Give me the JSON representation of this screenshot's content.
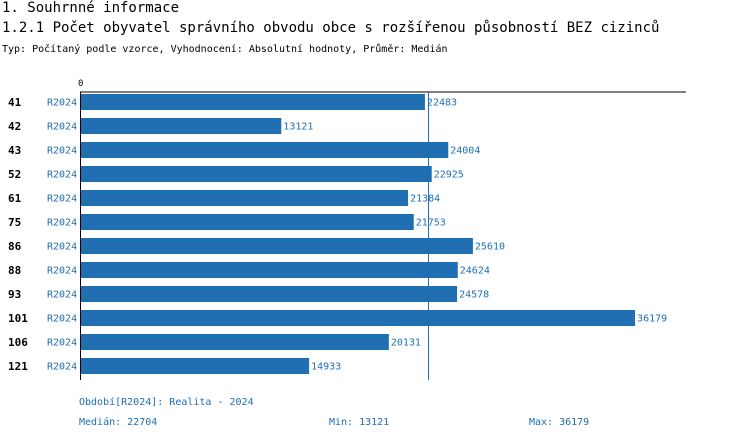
{
  "section_title": "1. Souhrnné informace",
  "chart_title": "1.2.1 Počet obyvatel správního obvodu obce s rozšířenou působností BEZ cizinců",
  "subtitle": "Typ: Počítaný podle vzorce, Vyhodnocení: Absolutní hodnoty, Průměr: Medián",
  "colors": {
    "bar": "#1f6fb2",
    "text_blue": "#1f6fb2",
    "axis": "#000000"
  },
  "chart_data": {
    "type": "bar",
    "orientation": "horizontal",
    "x_tick_labels": [
      "0"
    ],
    "xlim": [
      0,
      39500
    ],
    "categories": [
      "41",
      "42",
      "43",
      "52",
      "61",
      "75",
      "86",
      "88",
      "93",
      "101",
      "106",
      "121"
    ],
    "period_label": "R2024",
    "values": [
      22483,
      13121,
      24004,
      22925,
      21384,
      21753,
      25610,
      24624,
      24578,
      36179,
      20131,
      14933
    ],
    "median_line": 22704
  },
  "footer": {
    "period": "Období[R2024]: Realita - 2024",
    "median": "Medián: 22704",
    "min": "Min: 13121",
    "max": "Max: 36179"
  }
}
